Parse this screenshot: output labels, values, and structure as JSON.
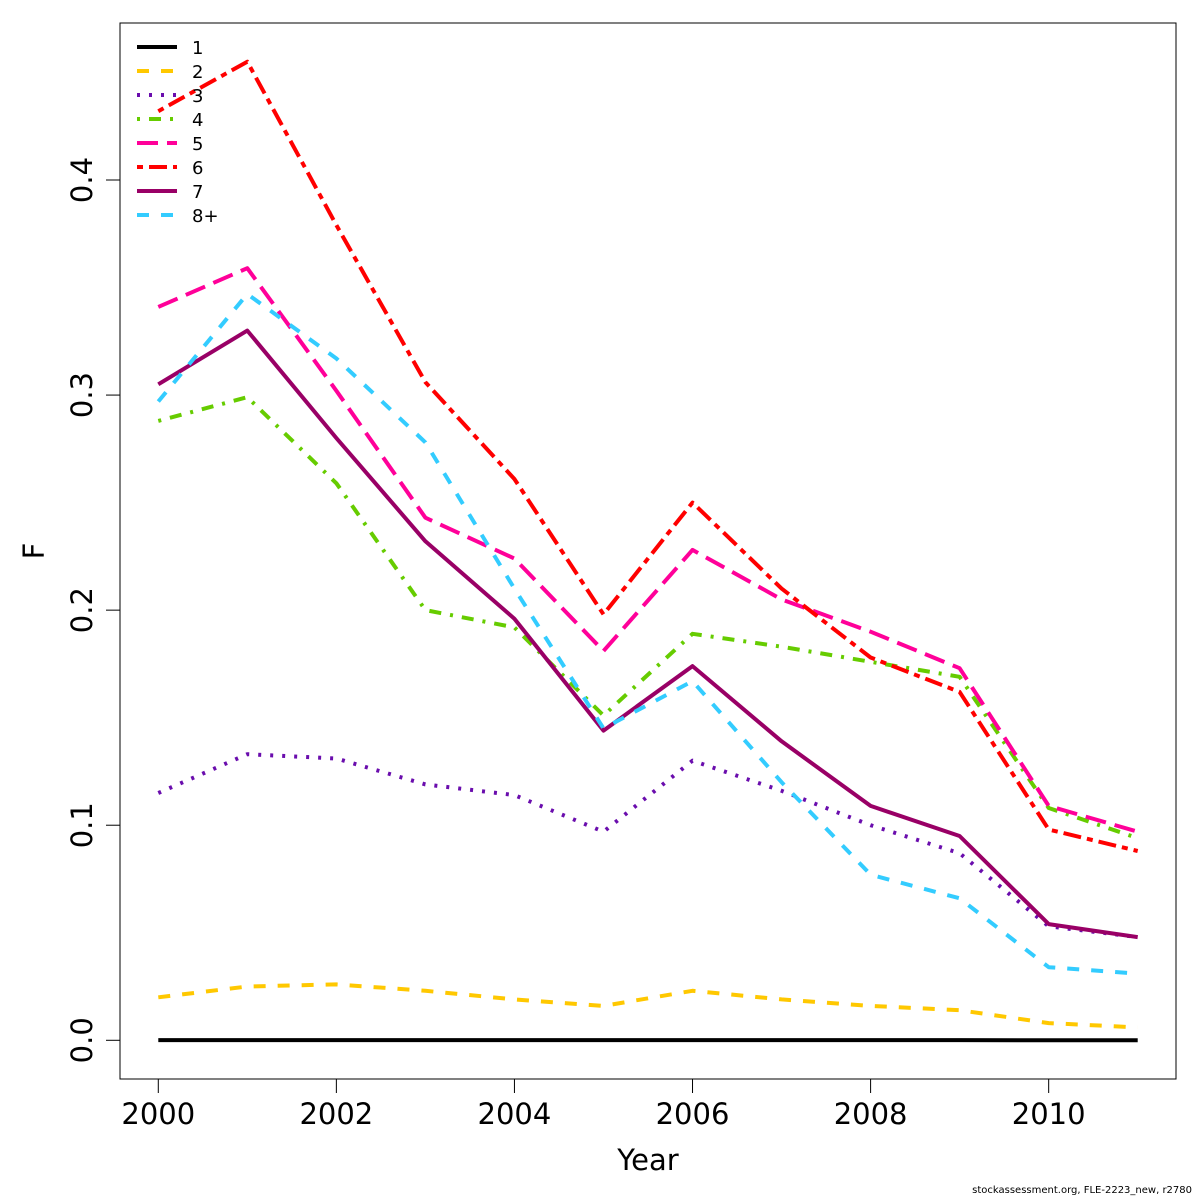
{
  "chart_data": {
    "type": "line",
    "title": "",
    "xlabel": "Year",
    "ylabel": "F",
    "xlim": [
      1999.57,
      2011.43
    ],
    "ylim": [
      -0.018,
      0.473
    ],
    "x_ticks": [
      2000,
      2002,
      2004,
      2006,
      2008,
      2010
    ],
    "x_tick_labels": [
      "2000",
      "2002",
      "2004",
      "2006",
      "2008",
      "2010"
    ],
    "y_ticks": [
      0.0,
      0.1,
      0.2,
      0.3,
      0.4
    ],
    "y_tick_labels": [
      "0.0",
      "0.1",
      "0.2",
      "0.3",
      "0.4"
    ],
    "grid": false,
    "legend_position": "top-left",
    "x": [
      2000,
      2001,
      2002,
      2003,
      2004,
      2005,
      2006,
      2007,
      2008,
      2009,
      2010,
      2011
    ],
    "series": [
      {
        "name": "1",
        "color": "#000000",
        "dash": "solid",
        "values": [
          0.0001,
          0.0001,
          0.0001,
          0.0001,
          0.0001,
          0.0001,
          0.0001,
          0.0001,
          0.0001,
          0.0001,
          0.0,
          0.0
        ]
      },
      {
        "name": "2",
        "color": "#FFC800",
        "dash": "dashed",
        "values": [
          0.02,
          0.025,
          0.026,
          0.023,
          0.019,
          0.016,
          0.023,
          0.019,
          0.016,
          0.014,
          0.008,
          0.006
        ]
      },
      {
        "name": "3",
        "color": "#6A0DAD",
        "dash": "dotted",
        "values": [
          0.115,
          0.133,
          0.131,
          0.119,
          0.114,
          0.097,
          0.13,
          0.116,
          0.1,
          0.087,
          0.053,
          0.048
        ]
      },
      {
        "name": "4",
        "color": "#66CC00",
        "dash": "dotdash",
        "values": [
          0.288,
          0.299,
          0.259,
          0.2,
          0.192,
          0.151,
          0.189,
          0.183,
          0.176,
          0.169,
          0.108,
          0.094
        ]
      },
      {
        "name": "5",
        "color": "#FF0099",
        "dash": "longdash",
        "values": [
          0.341,
          0.359,
          0.302,
          0.243,
          0.224,
          0.181,
          0.228,
          0.205,
          0.19,
          0.173,
          0.109,
          0.097
        ]
      },
      {
        "name": "6",
        "color": "#FF0000",
        "dash": "twodash",
        "values": [
          0.432,
          0.455,
          0.379,
          0.306,
          0.261,
          0.198,
          0.25,
          0.21,
          0.178,
          0.162,
          0.098,
          0.088
        ]
      },
      {
        "name": "7",
        "color": "#990066",
        "dash": "solid",
        "values": [
          0.305,
          0.33,
          0.28,
          0.232,
          0.196,
          0.144,
          0.174,
          0.139,
          0.109,
          0.095,
          0.054,
          0.048
        ]
      },
      {
        "name": "8+",
        "color": "#33CCFF",
        "dash": "dashed",
        "values": [
          0.297,
          0.347,
          0.317,
          0.278,
          0.21,
          0.145,
          0.167,
          0.12,
          0.077,
          0.066,
          0.034,
          0.031
        ]
      }
    ]
  },
  "footer": {
    "credit": "stockassessment.org, FLE-2223_new, r2780"
  }
}
